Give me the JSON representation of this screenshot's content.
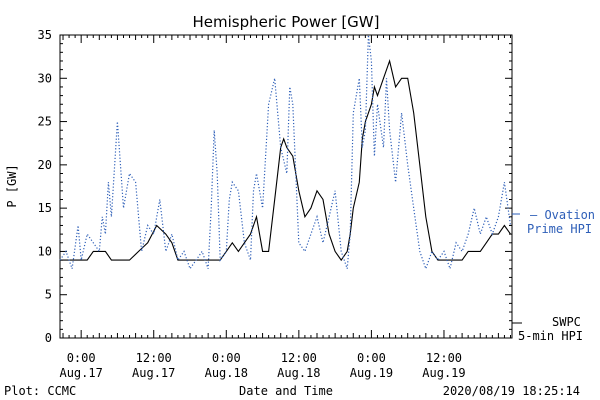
{
  "chart_data": {
    "type": "line",
    "title": "Hemispheric Power [GW]",
    "xlabel": "Date and Time",
    "ylabel": "P [GW]",
    "ylim": [
      0,
      35
    ],
    "y_ticks": [
      0,
      5,
      10,
      15,
      20,
      25,
      30,
      35
    ],
    "xlim": [
      "2020-08-16T20:30",
      "2020-08-19T23:15"
    ],
    "x_ticks": [
      {
        "time": "2020-08-17T00:00",
        "line1": "0:00",
        "line2": "Aug.17"
      },
      {
        "time": "2020-08-17T12:00",
        "line1": "12:00",
        "line2": "Aug.17"
      },
      {
        "time": "2020-08-18T00:00",
        "line1": "0:00",
        "line2": "Aug.18"
      },
      {
        "time": "2020-08-18T12:00",
        "line1": "12:00",
        "line2": "Aug.18"
      },
      {
        "time": "2020-08-19T00:00",
        "line1": "0:00",
        "line2": "Aug.19"
      },
      {
        "time": "2020-08-19T12:00",
        "line1": "12:00",
        "line2": "Aug.19"
      }
    ],
    "series": [
      {
        "name": "SWPC 5-min HPI",
        "legend_line1": "SWPC",
        "legend_line2": "5-min HPI",
        "color": "#000000",
        "style": "solid",
        "points": [
          [
            "2020-08-16T20:30",
            9
          ],
          [
            "2020-08-17T01:00",
            9
          ],
          [
            "2020-08-17T02:00",
            10
          ],
          [
            "2020-08-17T04:00",
            10
          ],
          [
            "2020-08-17T05:00",
            9
          ],
          [
            "2020-08-17T08:00",
            9
          ],
          [
            "2020-08-17T09:30",
            10
          ],
          [
            "2020-08-17T11:00",
            11
          ],
          [
            "2020-08-17T12:30",
            13
          ],
          [
            "2020-08-17T14:00",
            12
          ],
          [
            "2020-08-17T15:00",
            11
          ],
          [
            "2020-08-17T16:00",
            9
          ],
          [
            "2020-08-17T23:00",
            9
          ],
          [
            "2020-08-18T00:00",
            10
          ],
          [
            "2020-08-18T01:00",
            11
          ],
          [
            "2020-08-18T02:00",
            10
          ],
          [
            "2020-08-18T03:00",
            11
          ],
          [
            "2020-08-18T04:00",
            12
          ],
          [
            "2020-08-18T05:00",
            14
          ],
          [
            "2020-08-18T06:00",
            10
          ],
          [
            "2020-08-18T07:00",
            10
          ],
          [
            "2020-08-18T08:00",
            16
          ],
          [
            "2020-08-18T09:00",
            22
          ],
          [
            "2020-08-18T09:30",
            23
          ],
          [
            "2020-08-18T10:00",
            22
          ],
          [
            "2020-08-18T11:00",
            21
          ],
          [
            "2020-08-18T12:00",
            17
          ],
          [
            "2020-08-18T13:00",
            14
          ],
          [
            "2020-08-18T14:00",
            15
          ],
          [
            "2020-08-18T15:00",
            17
          ],
          [
            "2020-08-18T16:00",
            16
          ],
          [
            "2020-08-18T17:00",
            12
          ],
          [
            "2020-08-18T18:00",
            10
          ],
          [
            "2020-08-18T19:00",
            9
          ],
          [
            "2020-08-18T20:00",
            10
          ],
          [
            "2020-08-18T20:30",
            12
          ],
          [
            "2020-08-18T21:00",
            15
          ],
          [
            "2020-08-18T22:00",
            18
          ],
          [
            "2020-08-18T22:30",
            23
          ],
          [
            "2020-08-18T23:00",
            25
          ],
          [
            "2020-08-19T00:00",
            27
          ],
          [
            "2020-08-19T00:30",
            29
          ],
          [
            "2020-08-19T01:00",
            28
          ],
          [
            "2020-08-19T02:00",
            30
          ],
          [
            "2020-08-19T03:00",
            32
          ],
          [
            "2020-08-19T04:00",
            29
          ],
          [
            "2020-08-19T05:00",
            30
          ],
          [
            "2020-08-19T06:00",
            30
          ],
          [
            "2020-08-19T07:00",
            26
          ],
          [
            "2020-08-19T08:00",
            20
          ],
          [
            "2020-08-19T09:00",
            14
          ],
          [
            "2020-08-19T10:00",
            10
          ],
          [
            "2020-08-19T11:00",
            9
          ],
          [
            "2020-08-19T15:00",
            9
          ],
          [
            "2020-08-19T16:00",
            10
          ],
          [
            "2020-08-19T18:00",
            10
          ],
          [
            "2020-08-19T19:00",
            11
          ],
          [
            "2020-08-19T20:00",
            12
          ],
          [
            "2020-08-19T21:00",
            12
          ],
          [
            "2020-08-19T22:00",
            13
          ],
          [
            "2020-08-19T23:00",
            12
          ]
        ]
      },
      {
        "name": "Ovation Prime HPI",
        "legend_line1": "— Ovation",
        "legend_line2": "Prime HPI",
        "color": "#2e5fb8",
        "style": "dotted",
        "points": [
          [
            "2020-08-16T20:30",
            9
          ],
          [
            "2020-08-16T21:30",
            10
          ],
          [
            "2020-08-16T22:30",
            8
          ],
          [
            "2020-08-16T23:30",
            13
          ],
          [
            "2020-08-17T00:00",
            9
          ],
          [
            "2020-08-17T01:00",
            12
          ],
          [
            "2020-08-17T02:00",
            11
          ],
          [
            "2020-08-17T03:00",
            10
          ],
          [
            "2020-08-17T03:30",
            14
          ],
          [
            "2020-08-17T04:00",
            12
          ],
          [
            "2020-08-17T04:30",
            18
          ],
          [
            "2020-08-17T05:00",
            14
          ],
          [
            "2020-08-17T06:00",
            25
          ],
          [
            "2020-08-17T07:00",
            15
          ],
          [
            "2020-08-17T08:00",
            19
          ],
          [
            "2020-08-17T09:00",
            18
          ],
          [
            "2020-08-17T10:00",
            10
          ],
          [
            "2020-08-17T11:00",
            13
          ],
          [
            "2020-08-17T12:00",
            12
          ],
          [
            "2020-08-17T13:00",
            16
          ],
          [
            "2020-08-17T14:00",
            10
          ],
          [
            "2020-08-17T15:00",
            12
          ],
          [
            "2020-08-17T16:00",
            9
          ],
          [
            "2020-08-17T17:00",
            10
          ],
          [
            "2020-08-17T18:00",
            8
          ],
          [
            "2020-08-17T19:00",
            9
          ],
          [
            "2020-08-17T20:00",
            10
          ],
          [
            "2020-08-17T21:00",
            8
          ],
          [
            "2020-08-17T21:30",
            15
          ],
          [
            "2020-08-17T22:00",
            24
          ],
          [
            "2020-08-17T22:30",
            19
          ],
          [
            "2020-08-17T23:00",
            9
          ],
          [
            "2020-08-18T00:00",
            10
          ],
          [
            "2020-08-18T00:30",
            16
          ],
          [
            "2020-08-18T01:00",
            18
          ],
          [
            "2020-08-18T02:00",
            17
          ],
          [
            "2020-08-18T03:00",
            11
          ],
          [
            "2020-08-18T04:00",
            9
          ],
          [
            "2020-08-18T04:30",
            17
          ],
          [
            "2020-08-18T05:00",
            19
          ],
          [
            "2020-08-18T06:00",
            15
          ],
          [
            "2020-08-18T06:30",
            21
          ],
          [
            "2020-08-18T07:00",
            27
          ],
          [
            "2020-08-18T08:00",
            30
          ],
          [
            "2020-08-18T09:00",
            22
          ],
          [
            "2020-08-18T10:00",
            19
          ],
          [
            "2020-08-18T10:30",
            29
          ],
          [
            "2020-08-18T11:00",
            27
          ],
          [
            "2020-08-18T12:00",
            11
          ],
          [
            "2020-08-18T13:00",
            10
          ],
          [
            "2020-08-18T14:00",
            12
          ],
          [
            "2020-08-18T15:00",
            14
          ],
          [
            "2020-08-18T16:00",
            11
          ],
          [
            "2020-08-18T17:00",
            14
          ],
          [
            "2020-08-18T18:00",
            17
          ],
          [
            "2020-08-18T19:00",
            10
          ],
          [
            "2020-08-18T20:00",
            8
          ],
          [
            "2020-08-18T20:30",
            12
          ],
          [
            "2020-08-18T21:00",
            26
          ],
          [
            "2020-08-18T22:00",
            30
          ],
          [
            "2020-08-18T22:30",
            22
          ],
          [
            "2020-08-18T23:00",
            24
          ],
          [
            "2020-08-18T23:30",
            35
          ],
          [
            "2020-08-19T00:00",
            32
          ],
          [
            "2020-08-19T00:30",
            21
          ],
          [
            "2020-08-19T01:00",
            27
          ],
          [
            "2020-08-19T02:00",
            22
          ],
          [
            "2020-08-19T02:30",
            30
          ],
          [
            "2020-08-19T03:00",
            24
          ],
          [
            "2020-08-19T04:00",
            18
          ],
          [
            "2020-08-19T05:00",
            26
          ],
          [
            "2020-08-19T06:00",
            20
          ],
          [
            "2020-08-19T07:00",
            15
          ],
          [
            "2020-08-19T08:00",
            10
          ],
          [
            "2020-08-19T09:00",
            8
          ],
          [
            "2020-08-19T10:00",
            10
          ],
          [
            "2020-08-19T11:00",
            9
          ],
          [
            "2020-08-19T12:00",
            10
          ],
          [
            "2020-08-19T13:00",
            8
          ],
          [
            "2020-08-19T14:00",
            11
          ],
          [
            "2020-08-19T15:00",
            10
          ],
          [
            "2020-08-19T16:00",
            12
          ],
          [
            "2020-08-19T17:00",
            15
          ],
          [
            "2020-08-19T18:00",
            12
          ],
          [
            "2020-08-19T19:00",
            14
          ],
          [
            "2020-08-19T20:00",
            12
          ],
          [
            "2020-08-19T21:00",
            14
          ],
          [
            "2020-08-19T22:00",
            18
          ],
          [
            "2020-08-19T23:00",
            13
          ]
        ]
      }
    ]
  },
  "footer": {
    "left": "Plot: CCMC",
    "right": "2020/08/19 18:25:14"
  }
}
